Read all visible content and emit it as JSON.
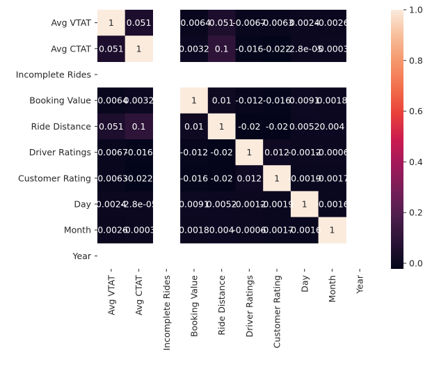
{
  "chart_data": {
    "type": "heatmap",
    "title": "",
    "xlabel": "",
    "ylabel": "",
    "rows": [
      "Avg VTAT",
      "Avg CTAT",
      "Incomplete Rides",
      "Booking Value",
      "Ride Distance",
      "Driver Ratings",
      "Customer Rating",
      "Day",
      "Month",
      "Year"
    ],
    "columns": [
      "Avg VTAT",
      "Avg CTAT",
      "Incomplete Rides",
      "Booking Value",
      "Ride Distance",
      "Driver Ratings",
      "Customer Rating",
      "Day",
      "Month",
      "Year"
    ],
    "values": [
      [
        1,
        0.051,
        null,
        -0.0064,
        0.051,
        -0.0067,
        -0.0063,
        0.0024,
        -0.0026,
        null
      ],
      [
        0.051,
        1,
        null,
        0.0032,
        0.1,
        -0.016,
        -0.022,
        -2.8e-05,
        -0.0003,
        null
      ],
      [
        null,
        null,
        null,
        null,
        null,
        null,
        null,
        null,
        null,
        null
      ],
      [
        -0.0064,
        0.0032,
        null,
        1,
        0.01,
        -0.012,
        -0.016,
        0.0091,
        0.0018,
        null
      ],
      [
        0.051,
        0.1,
        null,
        0.01,
        1,
        -0.02,
        -0.02,
        0.0052,
        0.004,
        null
      ],
      [
        -0.0067,
        -0.016,
        null,
        -0.012,
        -0.02,
        1,
        0.012,
        -0.0012,
        -0.0006,
        null
      ],
      [
        -0.0063,
        -0.022,
        null,
        -0.016,
        -0.02,
        0.012,
        1,
        -0.0019,
        -0.0017,
        null
      ],
      [
        0.0024,
        -2.8e-05,
        null,
        0.0091,
        0.0052,
        -0.0012,
        -0.0019,
        1,
        -0.0016,
        null
      ],
      [
        -0.0026,
        -0.0003,
        null,
        0.0018,
        0.004,
        -0.0006,
        -0.0017,
        -0.0016,
        1,
        null
      ],
      [
        null,
        null,
        null,
        null,
        null,
        null,
        null,
        null,
        null,
        null
      ]
    ],
    "labels": [
      [
        "1",
        "0.051",
        "",
        "-0.0064",
        "0.051",
        "-0.0067",
        "-0.0063",
        "0.0024",
        "-0.0026",
        ""
      ],
      [
        "0.051",
        "1",
        "",
        "0.0032",
        "0.1",
        "-0.016",
        "-0.022",
        "-2.8e-05",
        "-0.0003",
        ""
      ],
      [
        "",
        "",
        "",
        "",
        "",
        "",
        "",
        "",
        "",
        ""
      ],
      [
        "-0.0064",
        "0.0032",
        "",
        "1",
        "0.01",
        "-0.012",
        "-0.016",
        "0.0091",
        "0.0018",
        ""
      ],
      [
        "0.051",
        "0.1",
        "",
        "0.01",
        "1",
        "-0.02",
        "-0.02",
        "0.0052",
        "0.004",
        ""
      ],
      [
        "-0.0067",
        "-0.016",
        "",
        "-0.012",
        "-0.02",
        "1",
        "0.012",
        "-0.0012",
        "-0.0006",
        ""
      ],
      [
        "-0.0063",
        "-0.022",
        "",
        "-0.016",
        "-0.02",
        "0.012",
        "1",
        "-0.0019",
        "-0.0017",
        ""
      ],
      [
        "0.0024",
        "-2.8e-05",
        "",
        "0.0091",
        "0.0052",
        "-0.0012",
        "-0.0019",
        "1",
        "-0.0016",
        ""
      ],
      [
        "-0.0026",
        "-0.0003",
        "",
        "0.0018",
        "0.004",
        "-0.0006",
        "-0.0017",
        "-0.0016",
        "1",
        ""
      ],
      [
        "",
        "",
        "",
        "",
        "",
        "",
        "",
        "",
        "",
        ""
      ]
    ],
    "colorbar": {
      "vmin": -0.022,
      "vmax": 1.0,
      "ticks": [
        0.0,
        0.2,
        0.4,
        0.6,
        0.8,
        1.0
      ],
      "tick_labels": [
        "0.0",
        "0.2",
        "0.4",
        "0.6",
        "0.8",
        "1.0"
      ]
    },
    "colormap": "rocket",
    "grid": false
  }
}
